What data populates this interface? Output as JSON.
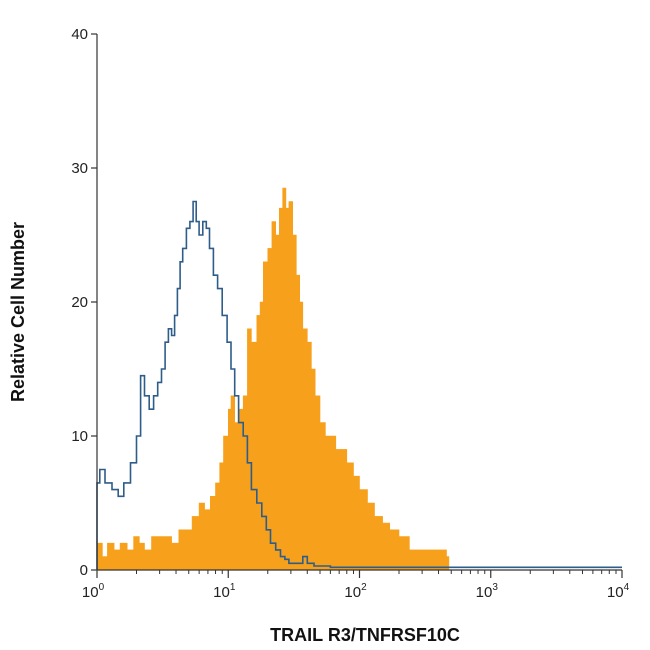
{
  "chart_data": {
    "type": "histogram",
    "title": "",
    "xlabel": "TRAIL R3/TNFRSF10C",
    "ylabel": "Relative Cell Number",
    "x_scale": "log",
    "xlim": [
      1,
      10000
    ],
    "ylim": [
      0,
      40
    ],
    "x_ticks": [
      {
        "base": "10",
        "exp": "0"
      },
      {
        "base": "10",
        "exp": "1"
      },
      {
        "base": "10",
        "exp": "2"
      },
      {
        "base": "10",
        "exp": "3"
      },
      {
        "base": "10",
        "exp": "4"
      }
    ],
    "y_ticks": [
      "0",
      "10",
      "20",
      "30",
      "40"
    ],
    "grid": false,
    "series": [
      {
        "style": "filled",
        "color": "#F7A01C",
        "points": [
          [
            1.0,
            2
          ],
          [
            1.1,
            1
          ],
          [
            1.2,
            2
          ],
          [
            1.35,
            1.5
          ],
          [
            1.5,
            2
          ],
          [
            1.7,
            1.5
          ],
          [
            1.9,
            2.5
          ],
          [
            2.1,
            2
          ],
          [
            2.3,
            1.5
          ],
          [
            2.6,
            2.5
          ],
          [
            2.9,
            2.5
          ],
          [
            3.3,
            2.5
          ],
          [
            3.7,
            2
          ],
          [
            4.2,
            3
          ],
          [
            4.7,
            3
          ],
          [
            5.3,
            4
          ],
          [
            6.0,
            5
          ],
          [
            6.6,
            4.5
          ],
          [
            7.3,
            5.5
          ],
          [
            8.0,
            6.5
          ],
          [
            8.6,
            8
          ],
          [
            9.2,
            10
          ],
          [
            10.0,
            12
          ],
          [
            10.5,
            13
          ],
          [
            11.2,
            11
          ],
          [
            12.0,
            12
          ],
          [
            13.0,
            13
          ],
          [
            14.0,
            18
          ],
          [
            15.0,
            17
          ],
          [
            16.5,
            19
          ],
          [
            17.5,
            20
          ],
          [
            18.5,
            23
          ],
          [
            20.0,
            24
          ],
          [
            21.5,
            26
          ],
          [
            23.0,
            25
          ],
          [
            24.5,
            27
          ],
          [
            26.0,
            28.5
          ],
          [
            27.5,
            27
          ],
          [
            29.0,
            27.5
          ],
          [
            31.0,
            25
          ],
          [
            33.0,
            22
          ],
          [
            35.0,
            20
          ],
          [
            37.0,
            18
          ],
          [
            40.0,
            17
          ],
          [
            43.0,
            15
          ],
          [
            46.0,
            13
          ],
          [
            50.0,
            11
          ],
          [
            55.0,
            10
          ],
          [
            60.0,
            10
          ],
          [
            66.0,
            9
          ],
          [
            72.0,
            9
          ],
          [
            80.0,
            8
          ],
          [
            90.0,
            7
          ],
          [
            100.0,
            6
          ],
          [
            115.0,
            5
          ],
          [
            130.0,
            4
          ],
          [
            150.0,
            3.5
          ],
          [
            170.0,
            3
          ],
          [
            200.0,
            2.5
          ],
          [
            240.0,
            1.5
          ],
          [
            290.0,
            1.5
          ],
          [
            350.0,
            1.5
          ],
          [
            420.0,
            1.5
          ],
          [
            460.0,
            1
          ],
          [
            480.0,
            0
          ]
        ]
      },
      {
        "style": "outline",
        "color": "#2E5D8A",
        "points": [
          [
            1.0,
            6.5
          ],
          [
            1.05,
            7.5
          ],
          [
            1.15,
            6.5
          ],
          [
            1.3,
            6
          ],
          [
            1.45,
            5.5
          ],
          [
            1.6,
            6.5
          ],
          [
            1.8,
            8
          ],
          [
            2.0,
            10
          ],
          [
            2.15,
            14.5
          ],
          [
            2.3,
            13
          ],
          [
            2.5,
            12
          ],
          [
            2.7,
            13
          ],
          [
            2.9,
            14
          ],
          [
            3.1,
            15
          ],
          [
            3.3,
            17
          ],
          [
            3.5,
            18
          ],
          [
            3.7,
            17.5
          ],
          [
            3.9,
            19
          ],
          [
            4.1,
            21
          ],
          [
            4.3,
            23
          ],
          [
            4.5,
            24
          ],
          [
            4.8,
            25.5
          ],
          [
            5.1,
            26
          ],
          [
            5.4,
            27.5
          ],
          [
            5.7,
            26
          ],
          [
            6.0,
            25
          ],
          [
            6.4,
            26
          ],
          [
            6.8,
            25.5
          ],
          [
            7.2,
            24
          ],
          [
            7.7,
            22
          ],
          [
            8.3,
            21
          ],
          [
            9.0,
            19
          ],
          [
            9.8,
            17
          ],
          [
            10.5,
            15
          ],
          [
            11.2,
            13
          ],
          [
            12.0,
            11
          ],
          [
            13.0,
            10
          ],
          [
            14.0,
            8
          ],
          [
            15.0,
            6
          ],
          [
            16.5,
            5
          ],
          [
            18.0,
            4
          ],
          [
            19.5,
            3
          ],
          [
            21.0,
            2
          ],
          [
            23.0,
            1.5
          ],
          [
            25.0,
            1
          ],
          [
            27.0,
            0.8
          ],
          [
            29.0,
            0.5
          ],
          [
            31.0,
            0.5
          ],
          [
            34.0,
            0.5
          ],
          [
            37.0,
            1
          ],
          [
            40.0,
            0.5
          ],
          [
            45.0,
            0.3
          ],
          [
            60.0,
            0.2
          ],
          [
            100.0,
            0.2
          ],
          [
            1000.0,
            0.2
          ],
          [
            10000.0,
            0.2
          ]
        ]
      }
    ]
  }
}
